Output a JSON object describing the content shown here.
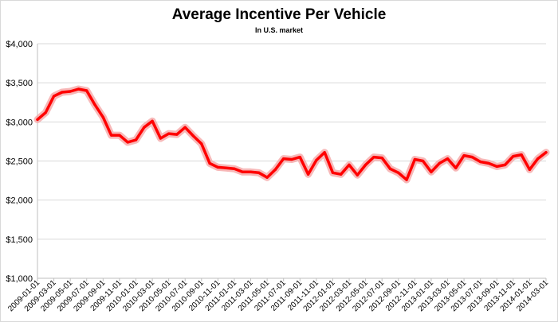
{
  "chart_data": {
    "type": "line",
    "title": "Average Incentive Per Vehicle",
    "subtitle": "In U.S. market",
    "xlabel": "",
    "ylabel": "",
    "ylim": [
      1000,
      4000
    ],
    "yticks": [
      1000,
      1500,
      2000,
      2500,
      3000,
      3500,
      4000
    ],
    "ytick_labels": [
      "$1,000",
      "$1,500",
      "$2,000",
      "$2,500",
      "$3,000",
      "$3,500",
      "$4,000"
    ],
    "xtick_labels": [
      "2009-01-01",
      "2009-03-01",
      "2009-05-01",
      "2009-07-01",
      "2009-09-01",
      "2009-11-01",
      "2010-01-01",
      "2010-03-01",
      "2010-05-01",
      "2010-07-01",
      "2010-09-01",
      "2010-11-01",
      "2011-01-01",
      "2011-03-01",
      "2011-05-01",
      "2011-07-01",
      "2011-09-01",
      "2011-11-01",
      "2012-01-01",
      "2012-03-01",
      "2012-05-01",
      "2012-07-01",
      "2012-09-01",
      "2012-11-01",
      "2013-01-01",
      "2013-03-01",
      "2013-05-01",
      "2013-07-01",
      "2013-09-01",
      "2013-11-01",
      "2014-01-01",
      "2014-03-01"
    ],
    "grid": true,
    "legend": "none",
    "series": [
      {
        "color": "#ff0000",
        "glow_color": "#f4a0a0",
        "x": [
          "2009-01",
          "2009-02",
          "2009-03",
          "2009-04",
          "2009-05",
          "2009-06",
          "2009-07",
          "2009-08",
          "2009-09",
          "2009-10",
          "2009-11",
          "2009-12",
          "2010-01",
          "2010-02",
          "2010-03",
          "2010-04",
          "2010-05",
          "2010-06",
          "2010-07",
          "2010-08",
          "2010-09",
          "2010-10",
          "2010-11",
          "2010-12",
          "2011-01",
          "2011-02",
          "2011-03",
          "2011-04",
          "2011-05",
          "2011-06",
          "2011-07",
          "2011-08",
          "2011-09",
          "2011-10",
          "2011-11",
          "2011-12",
          "2012-01",
          "2012-02",
          "2012-03",
          "2012-04",
          "2012-05",
          "2012-06",
          "2012-07",
          "2012-08",
          "2012-09",
          "2012-10",
          "2012-11",
          "2012-12",
          "2013-01",
          "2013-02",
          "2013-03",
          "2013-04",
          "2013-05",
          "2013-06",
          "2013-07",
          "2013-08",
          "2013-09",
          "2013-10",
          "2013-11",
          "2013-12",
          "2014-01",
          "2014-02",
          "2014-03"
        ],
        "values": [
          3030,
          3120,
          3330,
          3380,
          3390,
          3420,
          3400,
          3220,
          3060,
          2830,
          2830,
          2740,
          2770,
          2930,
          3010,
          2790,
          2850,
          2840,
          2930,
          2820,
          2720,
          2470,
          2420,
          2410,
          2400,
          2360,
          2360,
          2350,
          2290,
          2390,
          2530,
          2520,
          2550,
          2330,
          2510,
          2610,
          2350,
          2330,
          2450,
          2320,
          2450,
          2550,
          2540,
          2400,
          2350,
          2260,
          2520,
          2500,
          2360,
          2470,
          2530,
          2410,
          2570,
          2550,
          2490,
          2470,
          2430,
          2450,
          2560,
          2580,
          2390,
          2530,
          2610
        ]
      }
    ]
  }
}
